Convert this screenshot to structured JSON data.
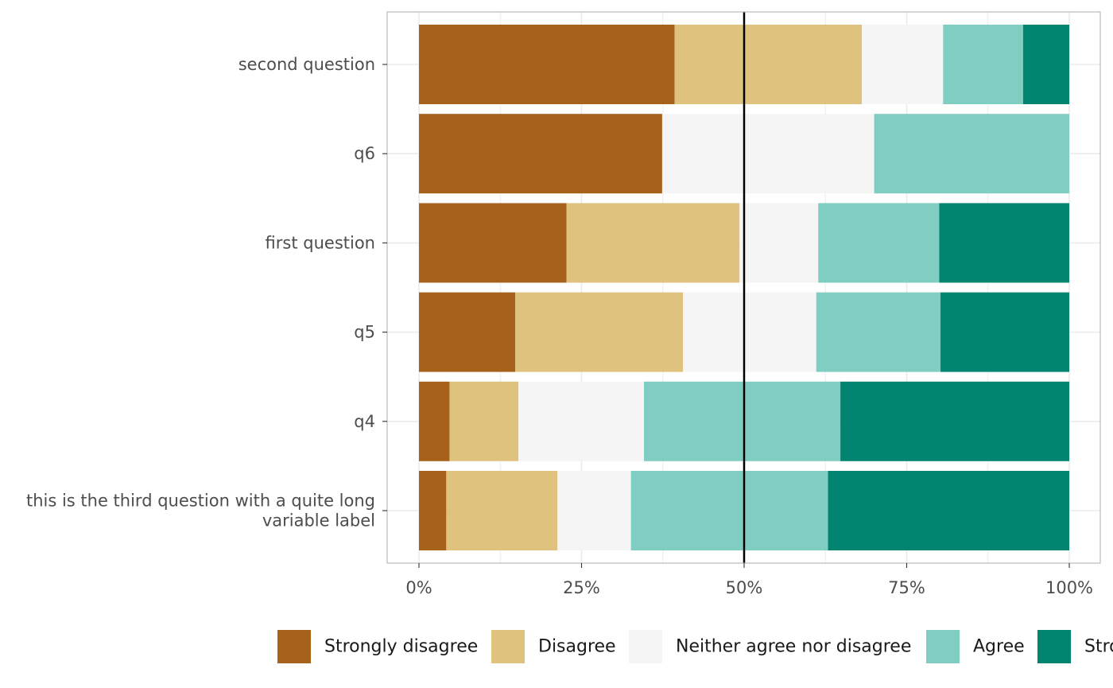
{
  "chart_data": {
    "type": "bar",
    "orientation": "horizontal",
    "stacked": true,
    "categories": [
      "second question",
      "q6",
      "first question",
      "q5",
      "q4",
      "this is the third question with a quite long variable label"
    ],
    "category_display_lines": [
      [
        "second question"
      ],
      [
        "q6"
      ],
      [
        "first question"
      ],
      [
        "q5"
      ],
      [
        "q4"
      ],
      [
        "this is the third question with a quite long",
        "variable label"
      ]
    ],
    "series": [
      {
        "name": "Strongly disagree",
        "color": "#A6611A",
        "values": [
          39.3,
          37.4,
          22.7,
          14.8,
          4.7,
          4.2
        ]
      },
      {
        "name": "Disagree",
        "color": "#DFC27D",
        "values": [
          28.8,
          0.0,
          26.6,
          25.8,
          10.6,
          17.1
        ]
      },
      {
        "name": "Neither agree nor disagree",
        "color": "#F5F5F5",
        "values": [
          12.5,
          32.6,
          12.1,
          20.5,
          19.3,
          11.3
        ]
      },
      {
        "name": "Agree",
        "color": "#80CDC1",
        "values": [
          12.3,
          30.0,
          18.6,
          19.1,
          30.2,
          30.3
        ]
      },
      {
        "name": "Strongly agree",
        "color": "#018571",
        "values": [
          7.1,
          0.0,
          20.0,
          19.8,
          35.2,
          37.1
        ]
      }
    ],
    "xlim": [
      0,
      100
    ],
    "xticks": [
      0,
      25,
      50,
      75,
      100
    ],
    "xtick_labels": [
      "0%",
      "25%",
      "50%",
      "75%",
      "100%"
    ],
    "reference_line": 50,
    "grid": true,
    "legend_position": "bottom",
    "title": "",
    "xlabel": "",
    "ylabel": ""
  }
}
